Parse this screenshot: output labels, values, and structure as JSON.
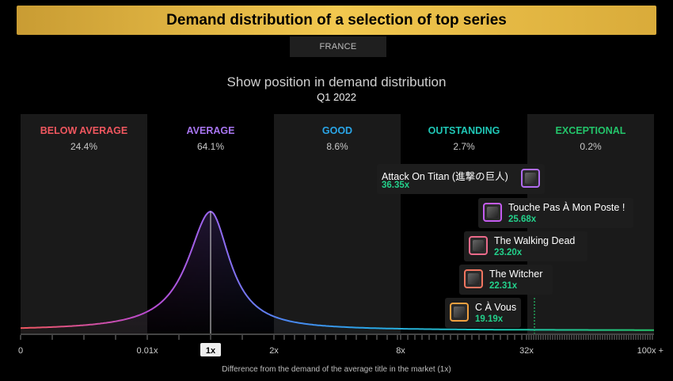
{
  "header": {
    "title": "Demand distribution of a selection of top series",
    "market": "FRANCE"
  },
  "chart_data": {
    "type": "area",
    "title": "Show position in demand distribution",
    "subtitle": "Q1 2022",
    "xlabel": "Difference from the demand of the average title in the market (1x)",
    "ticks": [
      "0",
      "0.01x",
      "1x",
      "2x",
      "8x",
      "32x",
      "100x +"
    ],
    "highlight_tick": "1x",
    "grid": false,
    "zones": [
      {
        "label": "BELOW AVERAGE",
        "percent": "24.4%",
        "color": "#f0575f"
      },
      {
        "label": "AVERAGE",
        "percent": "64.1%",
        "color": "#a775f0"
      },
      {
        "label": "GOOD",
        "percent": "8.6%",
        "color": "#2aa6e8"
      },
      {
        "label": "OUTSTANDING",
        "percent": "2.7%",
        "color": "#1fc7b6"
      },
      {
        "label": "EXCEPTIONAL",
        "percent": "0.2%",
        "color": "#23c46a"
      }
    ],
    "titles": [
      {
        "name": "Attack On Titan (進撃の巨人)",
        "multiplier": "36.35x",
        "value": 36.35,
        "icon": "attack-on-titan-thumbnail",
        "border": "#b06cf0"
      },
      {
        "name": "Touche Pas À Mon Poste !",
        "multiplier": "25.68x",
        "value": 25.68,
        "icon": "touche-pas-thumbnail",
        "border": "#c45cf0"
      },
      {
        "name": "The Walking Dead",
        "multiplier": "23.20x",
        "value": 23.2,
        "icon": "walking-dead-thumbnail",
        "border": "#ea6a8a"
      },
      {
        "name": "The Witcher",
        "multiplier": "22.31x",
        "value": 22.31,
        "icon": "witcher-thumbnail",
        "border": "#f07560"
      },
      {
        "name": "C À Vous",
        "multiplier": "19.19x",
        "value": 19.19,
        "icon": "c-a-vous-thumbnail",
        "border": "#f0a040"
      }
    ]
  }
}
